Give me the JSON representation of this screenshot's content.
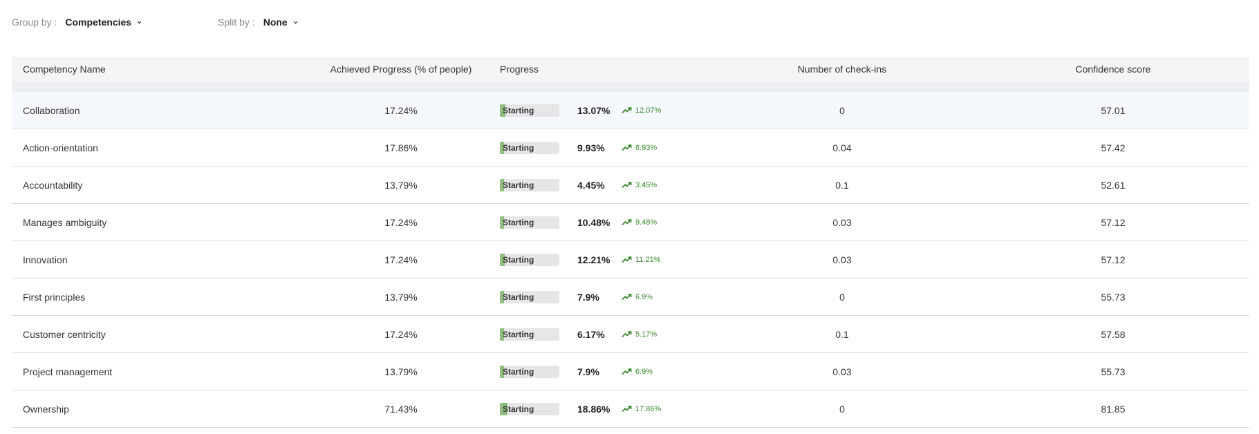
{
  "filters": {
    "group_by": {
      "label": "Group by :",
      "value": "Competencies"
    },
    "split_by": {
      "label": "Split by :",
      "value": "None"
    }
  },
  "table": {
    "headers": [
      "Competency Name",
      "Achieved Progress (% of people)",
      "Progress",
      "Number of check-ins",
      "Confidence score"
    ],
    "rows": [
      {
        "name": "Collaboration",
        "achieved": "17.24%",
        "status": "Starting",
        "progress": "13.07%",
        "progress_value": 13.07,
        "trend": "12.07%",
        "checkins": "0",
        "confidence": "57.01",
        "highlighted": true
      },
      {
        "name": "Action-orientation",
        "achieved": "17.86%",
        "status": "Starting",
        "progress": "9.93%",
        "progress_value": 9.93,
        "trend": "8.93%",
        "checkins": "0.04",
        "confidence": "57.42"
      },
      {
        "name": "Accountability",
        "achieved": "13.79%",
        "status": "Starting",
        "progress": "4.45%",
        "progress_value": 4.45,
        "trend": "3.45%",
        "checkins": "0.1",
        "confidence": "52.61"
      },
      {
        "name": "Manages ambiguity",
        "achieved": "17.24%",
        "status": "Starting",
        "progress": "10.48%",
        "progress_value": 10.48,
        "trend": "9.48%",
        "checkins": "0.03",
        "confidence": "57.12"
      },
      {
        "name": "Innovation",
        "achieved": "17.24%",
        "status": "Starting",
        "progress": "12.21%",
        "progress_value": 12.21,
        "trend": "11.21%",
        "checkins": "0.03",
        "confidence": "57.12"
      },
      {
        "name": "First principles",
        "achieved": "13.79%",
        "status": "Starting",
        "progress": "7.9%",
        "progress_value": 7.9,
        "trend": "6.9%",
        "checkins": "0",
        "confidence": "55.73"
      },
      {
        "name": "Customer centricity",
        "achieved": "17.24%",
        "status": "Starting",
        "progress": "6.17%",
        "progress_value": 6.17,
        "trend": "5.17%",
        "checkins": "0.1",
        "confidence": "57.58"
      },
      {
        "name": "Project management",
        "achieved": "13.79%",
        "status": "Starting",
        "progress": "7.9%",
        "progress_value": 7.9,
        "trend": "6.9%",
        "checkins": "0.03",
        "confidence": "55.73"
      },
      {
        "name": "Ownership",
        "achieved": "71.43%",
        "status": "Starting",
        "progress": "18.86%",
        "progress_value": 18.86,
        "trend": "17.86%",
        "checkins": "0",
        "confidence": "81.85"
      }
    ]
  },
  "colors": {
    "accent_green": "#3a8a2e",
    "bar_fill": "#8fbf7f",
    "bar_track": "#e6e6e6"
  },
  "icons": {
    "dropdown": "chevron-down-icon",
    "trend": "trending-up-icon"
  }
}
